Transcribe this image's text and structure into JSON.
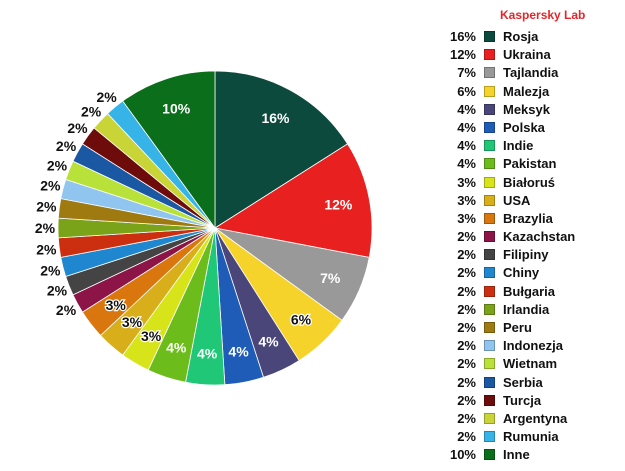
{
  "brand": "Kaspersky Lab",
  "chart_data": {
    "type": "pie",
    "title": "",
    "categories": [
      "Rosja",
      "Ukraina",
      "Tajlandia",
      "Malezja",
      "Meksyk",
      "Polska",
      "Indie",
      "Pakistan",
      "Białoruś",
      "USA",
      "Brazylia",
      "Kazachstan",
      "Filipiny",
      "Chiny",
      "Bułgaria",
      "Irlandia",
      "Peru",
      "Indonezja",
      "Wietnam",
      "Serbia",
      "Turcja",
      "Argentyna",
      "Rumunia",
      "Inne"
    ],
    "values": [
      16,
      12,
      7,
      6,
      4,
      4,
      4,
      4,
      3,
      3,
      3,
      2,
      2,
      2,
      2,
      2,
      2,
      2,
      2,
      2,
      2,
      2,
      2,
      10
    ],
    "labels": [
      "16%",
      "12%",
      "7%",
      "6%",
      "4%",
      "4%",
      "4%",
      "4%",
      "3%",
      "3%",
      "3%",
      "2%",
      "2%",
      "2%",
      "2%",
      "2%",
      "2%",
      "2%",
      "2%",
      "2%",
      "2%",
      "2%",
      "2%",
      "10%"
    ],
    "colors": [
      "#0b4a3c",
      "#e8201f",
      "#999999",
      "#f6d32a",
      "#4a467a",
      "#1f5cb8",
      "#1fc777",
      "#6cbd1c",
      "#d8e41a",
      "#d9ae1b",
      "#d9760d",
      "#8c1447",
      "#444444",
      "#1f86d0",
      "#cc2f10",
      "#7aa31a",
      "#9e7a10",
      "#8fc5ee",
      "#b8e23a",
      "#1a58a4",
      "#6e0c0c",
      "#c9d437",
      "#36b4e8",
      "#0b6e1a"
    ],
    "legend_position": "right"
  }
}
